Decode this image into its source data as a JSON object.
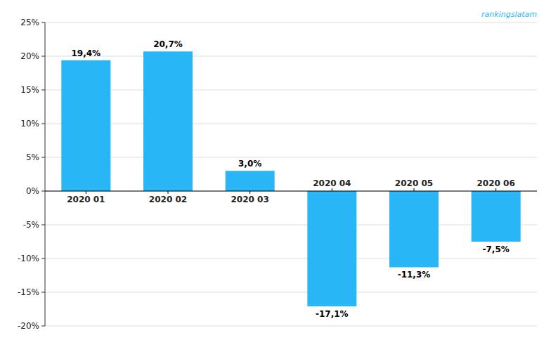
{
  "chart_data": {
    "type": "bar",
    "categories": [
      "2020 01",
      "2020 02",
      "2020 03",
      "2020 04",
      "2020 05",
      "2020 06"
    ],
    "values": [
      19.4,
      20.7,
      3.0,
      -17.1,
      -11.3,
      -7.5
    ],
    "value_labels": [
      "19,4%",
      "20,7%",
      "3,0%",
      "-17,1%",
      "-11,3%",
      "-7,5%"
    ],
    "data_labels": true,
    "color": "#29B6F6",
    "ylim": [
      -20,
      25
    ],
    "yticks": [
      {
        "value": -20,
        "label": "-20%"
      },
      {
        "value": -15,
        "label": "-15%"
      },
      {
        "value": -10,
        "label": "-10%"
      },
      {
        "value": -5,
        "label": "-5%"
      },
      {
        "value": 0,
        "label": "0%"
      },
      {
        "value": 5,
        "label": "5%"
      },
      {
        "value": 10,
        "label": "10%"
      },
      {
        "value": 15,
        "label": "15%"
      },
      {
        "value": 20,
        "label": "20%"
      },
      {
        "value": 25,
        "label": "25%"
      }
    ],
    "grid": true,
    "annotations": [
      "rankingslatam"
    ]
  }
}
